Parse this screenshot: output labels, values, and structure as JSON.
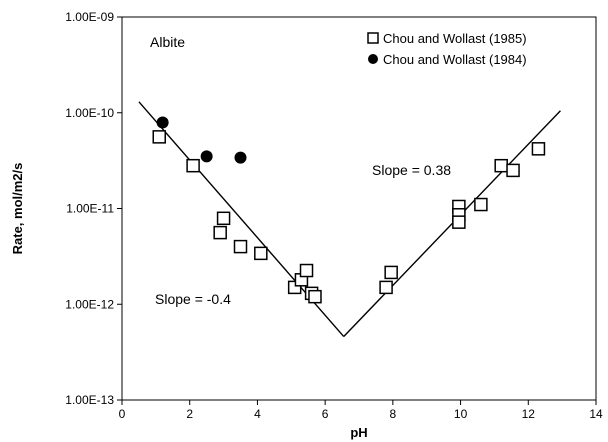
{
  "chart_data": {
    "type": "scatter",
    "title": "",
    "xlabel": "pH",
    "ylabel": "Rate, mol/m2/s",
    "xlim": [
      0,
      14
    ],
    "ylim": [
      1e-13,
      1e-09
    ],
    "yscale": "log",
    "x_ticks": [
      "0",
      "2",
      "4",
      "6",
      "8",
      "10",
      "12",
      "14"
    ],
    "y_ticks": [
      "1.00E-13",
      "1.00E-12",
      "1.00E-11",
      "1.00E-10",
      "1.00E-09"
    ],
    "grid": false,
    "legend_position": "top-right",
    "mineral_label": "Albite",
    "series": [
      {
        "name": "Chou and Wollast (1985)",
        "marker": "open-square",
        "color": "#000000",
        "points": [
          [
            1.1,
            5.6e-11
          ],
          [
            2.1,
            2.8e-11
          ],
          [
            2.9,
            5.6e-12
          ],
          [
            3.0,
            7.9e-12
          ],
          [
            3.5,
            4e-12
          ],
          [
            4.1,
            3.4e-12
          ],
          [
            5.1,
            1.5e-12
          ],
          [
            5.3,
            1.8e-12
          ],
          [
            5.45,
            2.25e-12
          ],
          [
            5.6,
            1.3e-12
          ],
          [
            5.7,
            1.2e-12
          ],
          [
            7.8,
            1.5e-12
          ],
          [
            7.95,
            2.15e-12
          ],
          [
            9.95,
            1.05e-11
          ],
          [
            9.95,
            8.6e-12
          ],
          [
            9.95,
            7.2e-12
          ],
          [
            10.6,
            1.1e-11
          ],
          [
            11.2,
            2.8e-11
          ],
          [
            11.55,
            2.5e-11
          ],
          [
            12.3,
            4.2e-11
          ]
        ]
      },
      {
        "name": "Chou and Wollast (1984)",
        "marker": "filled-circle",
        "color": "#000000",
        "points": [
          [
            1.2,
            7.9e-11
          ],
          [
            2.5,
            3.5e-11
          ],
          [
            3.5,
            3.4e-11
          ]
        ]
      }
    ],
    "fit_lines": [
      {
        "label": "Slope = -0.4",
        "from": [
          0.5,
          1.3e-10
        ],
        "to": [
          6.55,
          4.6e-13
        ]
      },
      {
        "label": "Slope = 0.38",
        "from": [
          6.55,
          4.6e-13
        ],
        "to": [
          12.95,
          1.05e-10
        ]
      }
    ]
  }
}
